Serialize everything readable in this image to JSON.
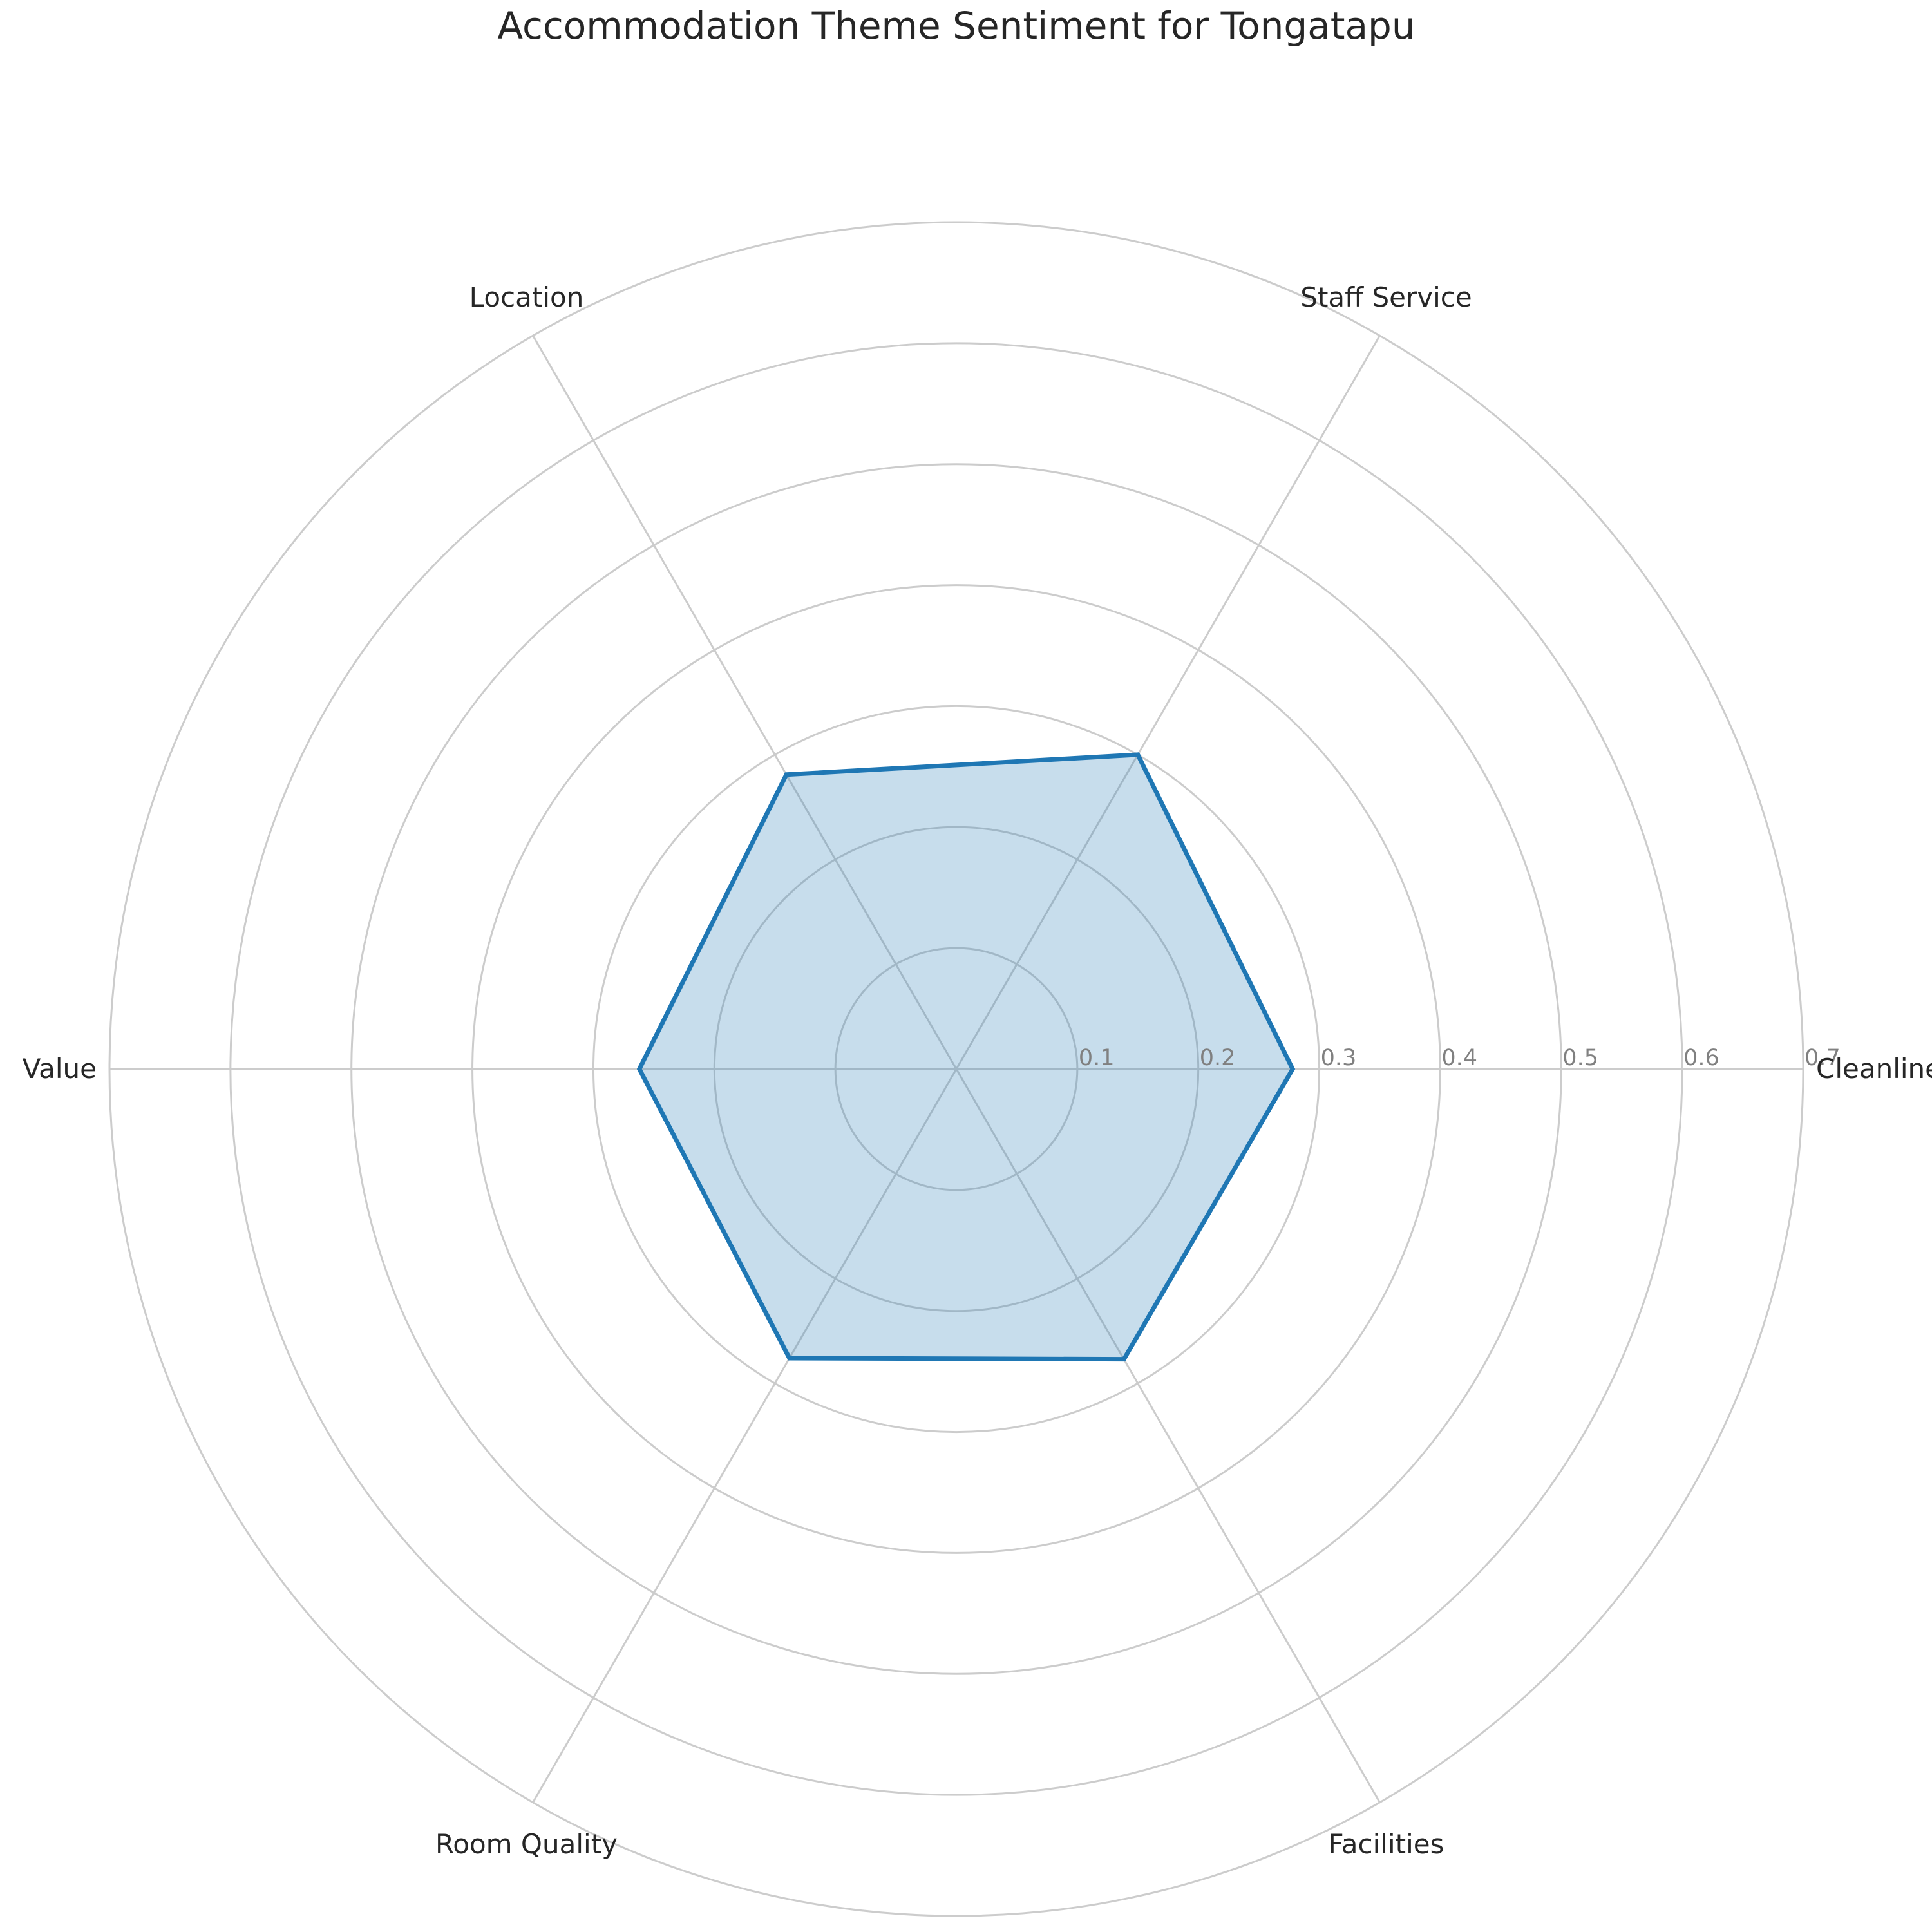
{
  "chart_data": {
    "type": "radar",
    "title": "Accommodation Theme Sentiment for Tongatapu",
    "categories": [
      "Cleanliness",
      "Staff Service",
      "Location",
      "Value",
      "Room Quality",
      "Facilities"
    ],
    "series": [
      {
        "values": [
          0.278,
          0.3,
          0.281,
          0.262,
          0.276,
          0.277
        ],
        "color": "#1f77b4"
      }
    ],
    "rlim": [
      0,
      0.7
    ],
    "rticks": [
      0.1,
      0.2,
      0.3,
      0.4,
      0.5,
      0.6,
      0.7
    ],
    "rtick_labels": [
      "0.1",
      "0.2",
      "0.3",
      "0.4",
      "0.5",
      "0.6",
      "0.7"
    ],
    "grid": true,
    "fill_color": "#1f77b4"
  }
}
